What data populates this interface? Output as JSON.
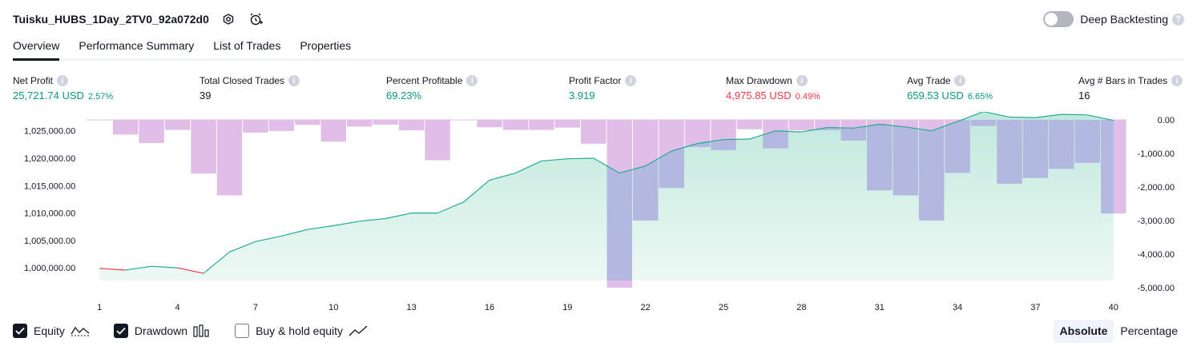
{
  "header": {
    "strategy_title": "Tuisku_HUBS_1Day_2TV0_92a072d0",
    "deep_backtesting_label": "Deep Backtesting",
    "deep_backtesting_on": false,
    "help_glyph": "?"
  },
  "tabs": [
    {
      "label": "Overview",
      "active": true
    },
    {
      "label": "Performance Summary",
      "active": false
    },
    {
      "label": "List of Trades",
      "active": false
    },
    {
      "label": "Properties",
      "active": false
    }
  ],
  "metrics": [
    {
      "label": "Net Profit",
      "value": "25,721.74 USD",
      "percent": "2.57%",
      "tone": "green"
    },
    {
      "label": "Total Closed Trades",
      "value": "39",
      "percent": "",
      "tone": "dark"
    },
    {
      "label": "Percent Profitable",
      "value": "69.23%",
      "percent": "",
      "tone": "green"
    },
    {
      "label": "Profit Factor",
      "value": "3.919",
      "percent": "",
      "tone": "green"
    },
    {
      "label": "Max Drawdown",
      "value": "4,975.85 USD",
      "percent": "0.49%",
      "tone": "red"
    },
    {
      "label": "Avg Trade",
      "value": "659.53 USD",
      "percent": "6.65%",
      "tone": "green"
    },
    {
      "label": "Avg # Bars in Trades",
      "value": "16",
      "percent": "",
      "tone": "dark"
    }
  ],
  "info_glyph": "i",
  "chart_data": {
    "type": "line",
    "x_ticks": [
      1,
      4,
      7,
      10,
      13,
      16,
      19,
      22,
      25,
      28,
      31,
      34,
      37,
      40
    ],
    "left_axis_ticks": [
      "1,025,000.00",
      "1,020,000.00",
      "1,015,000.00",
      "1,010,000.00",
      "1,005,000.00",
      "1,000,000.00"
    ],
    "left_axis_values": [
      1025000,
      1020000,
      1015000,
      1010000,
      1005000,
      1000000
    ],
    "right_axis_ticks": [
      "0.00",
      "-1,000.00",
      "-2,000.00",
      "-3,000.00",
      "-4,000.00",
      "-5,000.00"
    ],
    "right_axis_values": [
      0,
      -1000,
      -2000,
      -3000,
      -4000,
      -5000
    ],
    "x_range": [
      0,
      40
    ],
    "equity_range": [
      997700,
      1027000
    ],
    "drawdown_range": [
      -5000,
      0
    ],
    "series": [
      {
        "name": "Equity",
        "x": [
          1,
          2,
          3,
          4,
          5,
          6,
          7,
          8,
          9,
          10,
          11,
          12,
          13,
          14,
          15,
          16,
          17,
          18,
          19,
          20,
          21,
          22,
          23,
          24,
          25,
          26,
          27,
          28,
          29,
          30,
          31,
          32,
          33,
          34,
          35,
          36,
          37,
          38,
          39,
          40
        ],
        "values": [
          999900,
          999600,
          1000300,
          1000000,
          999000,
          1002900,
          1004800,
          1005800,
          1007000,
          1007700,
          1008500,
          1009000,
          1010000,
          1010000,
          1012000,
          1016000,
          1017300,
          1019500,
          1019900,
          1020000,
          1017300,
          1018600,
          1021300,
          1022700,
          1023400,
          1023500,
          1025000,
          1024800,
          1025600,
          1025500,
          1026200,
          1025700,
          1025000,
          1026700,
          1028500,
          1027500,
          1027400,
          1028000,
          1027900,
          1026900
        ],
        "color_up": "#089981",
        "color_down": "#f23645"
      },
      {
        "name": "Drawdown",
        "x": [
          1,
          2,
          3,
          4,
          5,
          6,
          7,
          8,
          9,
          10,
          11,
          12,
          13,
          14,
          15,
          16,
          17,
          18,
          19,
          20,
          21,
          22,
          23,
          24,
          25,
          26,
          27,
          28,
          29,
          30,
          31,
          32,
          33,
          34,
          35,
          36,
          37,
          38,
          39,
          40
        ],
        "values": [
          0,
          -440,
          -690,
          -300,
          -1600,
          -2250,
          -380,
          -330,
          -150,
          -650,
          -200,
          -140,
          -310,
          -1200,
          0,
          -220,
          -300,
          -300,
          -230,
          -710,
          -5000,
          -3000,
          -2030,
          -810,
          -900,
          -280,
          -850,
          -310,
          -310,
          -620,
          -2100,
          -2250,
          -3000,
          -1580,
          -180,
          -1900,
          -1730,
          -1460,
          -1280,
          -2790
        ],
        "color": "#ce93d8"
      }
    ],
    "colors": {
      "equity_fill_top": "#b8e6d8",
      "drawdown_fill": "#e1bee7",
      "overlap_fill": "#b3b8e0",
      "equity_line": "#22ab94",
      "equity_loss_line": "#f23645"
    }
  },
  "legend": [
    {
      "label": "Equity",
      "checked": true,
      "icon": "equity-line-icon"
    },
    {
      "label": "Drawdown",
      "checked": true,
      "icon": "drawdown-bars-icon"
    },
    {
      "label": "Buy & hold equity",
      "checked": false,
      "icon": "buy-hold-line-icon"
    }
  ],
  "modes": [
    {
      "label": "Absolute",
      "active": true
    },
    {
      "label": "Percentage",
      "active": false
    }
  ]
}
